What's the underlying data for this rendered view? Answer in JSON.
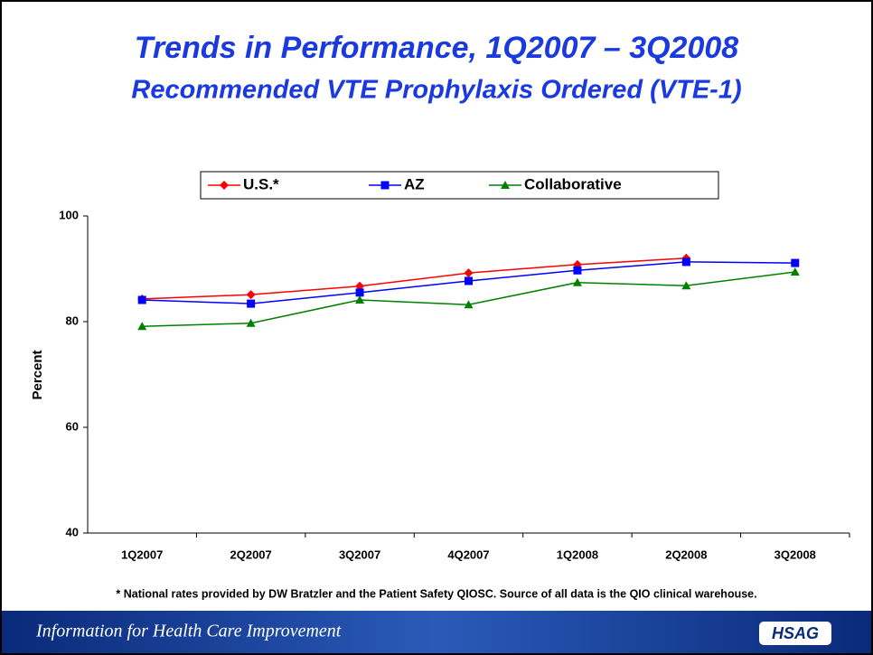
{
  "chart_data": {
    "type": "line",
    "title": "Trends in Performance, 1Q2007 – 3Q2008",
    "subtitle": "Recommended VTE Prophylaxis Ordered (VTE-1)",
    "y_label": "Percent",
    "categories": [
      "1Q2007",
      "2Q2007",
      "3Q2007",
      "4Q2007",
      "1Q2008",
      "2Q2008",
      "3Q2008"
    ],
    "series": [
      {
        "name": "U.S.*",
        "color": "#ff0000",
        "marker": "diamond",
        "values": [
          84.3,
          85.1,
          86.7,
          89.2,
          90.8,
          92.0,
          null
        ]
      },
      {
        "name": "AZ",
        "color": "#0000ff",
        "marker": "square",
        "values": [
          84.1,
          83.4,
          85.5,
          87.7,
          89.7,
          91.3,
          91.1
        ]
      },
      {
        "name": "Collaborative",
        "color": "#008000",
        "marker": "triangle",
        "values": [
          79.1,
          79.7,
          84.1,
          83.2,
          87.4,
          86.8,
          89.4
        ]
      }
    ],
    "ylim": [
      40,
      100
    ],
    "yticks": [
      40,
      60,
      80,
      100
    ],
    "legend": "top"
  },
  "footnote": "* National rates provided by DW Bratzler and the Patient Safety QIOSC. Source of all data is the QIO clinical warehouse.",
  "footer": {
    "tagline": "Information for Health Care Improvement",
    "logo": "HSAG"
  }
}
